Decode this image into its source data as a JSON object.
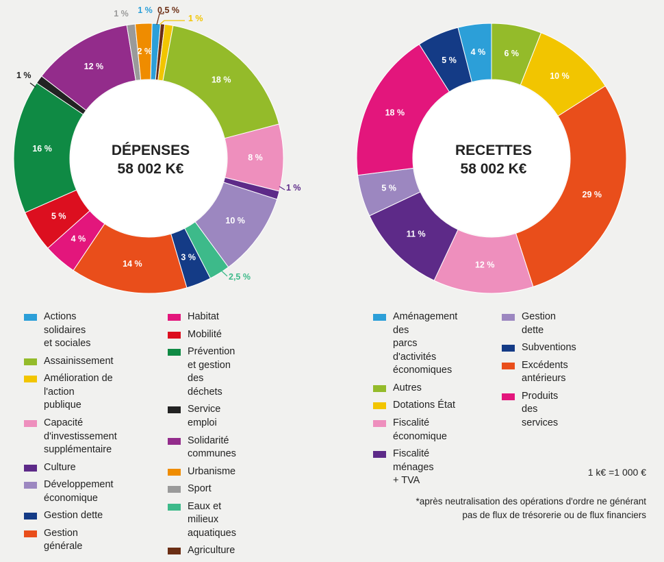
{
  "chart_data": [
    {
      "type": "pie",
      "title": "DÉPENSES",
      "subtitle": "58 002 K€",
      "total": 58002,
      "unit": "K€",
      "slices": [
        {
          "name": "Actions solidaires\net sociales",
          "label": "1 %",
          "value": 1,
          "color": "#2c9fd8"
        },
        {
          "name": "Agriculture",
          "label": "0,5 %",
          "value": 0.5,
          "color": "#6b2e14"
        },
        {
          "name": "Amélioration de l'action\npublique",
          "label": "1 %",
          "value": 1,
          "color": "#f2c500"
        },
        {
          "name": "Assainissement",
          "label": "18 %",
          "value": 18,
          "color": "#94bb2a"
        },
        {
          "name": "Capacité\nd'investissement\nsupplémentaire",
          "label": "8 %",
          "value": 8,
          "color": "#ee8fbd"
        },
        {
          "name": "Culture",
          "label": "1 %",
          "value": 1,
          "color": "#5d2a88"
        },
        {
          "name": "Développement\néconomique",
          "label": "10 %",
          "value": 10,
          "color": "#9c87c0"
        },
        {
          "name": "Eaux et milieux\naquatiques",
          "label": "2,5 %",
          "value": 2.5,
          "color": "#3dba8a"
        },
        {
          "name": "Gestion dette",
          "label": "3 %",
          "value": 3,
          "color": "#143b86"
        },
        {
          "name": "Gestion générale",
          "label": "14 %",
          "value": 14,
          "color": "#e94e1b"
        },
        {
          "name": "Habitat",
          "label": "4 %",
          "value": 4,
          "color": "#e3167c"
        },
        {
          "name": "Mobilité",
          "label": "5 %",
          "value": 5,
          "color": "#dc0f1f"
        },
        {
          "name": "Prévention et gestion\ndes déchets",
          "label": "16 %",
          "value": 16,
          "color": "#0f8a44"
        },
        {
          "name": "Service emploi",
          "label": "1 %",
          "value": 1,
          "color": "#222222"
        },
        {
          "name": "Solidarité communes",
          "label": "12 %",
          "value": 12,
          "color": "#932c8b"
        },
        {
          "name": "Sport",
          "label": "1 %",
          "value": 1,
          "color": "#9a9a9a"
        },
        {
          "name": "Urbanisme",
          "label": "2 %",
          "value": 2,
          "color": "#ef8c00"
        }
      ]
    },
    {
      "type": "pie",
      "title": "RECETTES",
      "subtitle": "58 002 K€",
      "total": 58002,
      "unit": "K€",
      "slices": [
        {
          "name": "Autres",
          "label": "6 %",
          "value": 6,
          "color": "#94bb2a"
        },
        {
          "name": "Dotations État",
          "label": "10 %",
          "value": 10,
          "color": "#f2c500"
        },
        {
          "name": "Excédents antérieurs",
          "label": "29 %",
          "value": 29,
          "color": "#e94e1b"
        },
        {
          "name": "Fiscalité économique",
          "label": "12 %",
          "value": 12,
          "color": "#ee8fbd"
        },
        {
          "name": "Fiscalité ménages\n+ TVA",
          "label": "11 %",
          "value": 11,
          "color": "#5d2a88"
        },
        {
          "name": "Gestion dette",
          "label": "5 %",
          "value": 5,
          "color": "#9c87c0"
        },
        {
          "name": "Produits des services",
          "label": "18 %",
          "value": 18,
          "color": "#e3167c"
        },
        {
          "name": "Subventions",
          "label": "5 %",
          "value": 5,
          "color": "#143b86"
        },
        {
          "name": "Aménagement des\nparcs d'activités\néconomiques",
          "label": "4 %",
          "value": 4,
          "color": "#2c9fd8"
        }
      ]
    }
  ],
  "legends": {
    "depenses": [
      [
        "Actions solidaires\net sociales",
        "Assainissement",
        "Amélioration de l'action\npublique",
        "Capacité\nd'investissement\nsupplémentaire",
        "Culture",
        "Développement\néconomique",
        "Gestion dette",
        "Gestion générale"
      ],
      [
        "Habitat",
        "Mobilité",
        "Prévention  et  gestion\ndes déchets",
        "Service emploi",
        "Solidarité communes",
        "Urbanisme",
        "Sport",
        "Eaux et milieux\naquatiques",
        "Agriculture"
      ]
    ],
    "recettes": [
      [
        "Aménagement des\nparcs d'activités\néconomiques",
        "Autres",
        "Dotations État",
        "Fiscalité économique",
        "Fiscalité ménages\n+ TVA"
      ],
      [
        "Gestion dette",
        "Subventions",
        "Excédents antérieurs",
        "Produits des services"
      ]
    ]
  },
  "notes": {
    "unit": "1 k€ =1 000 €",
    "footnote": "*après neutralisation des opérations d'ordre ne générant pas de flux de trésorerie ou de flux financiers"
  }
}
